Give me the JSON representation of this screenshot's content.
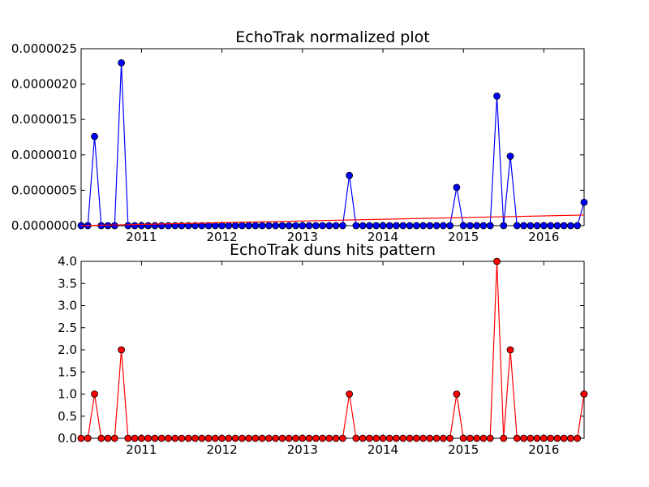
{
  "chart_data": [
    {
      "type": "line",
      "title": "EchoTrak normalized plot",
      "xlabel": "",
      "ylabel": "",
      "xlim": [
        2010.25,
        2016.5
      ],
      "ylim": [
        0,
        2.5e-06
      ],
      "x_ticks": [
        {
          "value": 2011,
          "label": "2011"
        },
        {
          "value": 2012,
          "label": "2012"
        },
        {
          "value": 2013,
          "label": "2013"
        },
        {
          "value": 2014,
          "label": "2014"
        },
        {
          "value": 2015,
          "label": "2015"
        },
        {
          "value": 2016,
          "label": "2016"
        }
      ],
      "y_ticks": [
        {
          "value": 0,
          "label": "0.0000000"
        },
        {
          "value": 5e-07,
          "label": "0.0000005"
        },
        {
          "value": 1e-06,
          "label": "0.0000010"
        },
        {
          "value": 1.5e-06,
          "label": "0.0000015"
        },
        {
          "value": 2e-06,
          "label": "0.0000020"
        },
        {
          "value": 2.5e-06,
          "label": "0.0000025"
        }
      ],
      "x_start": 2010.25,
      "x_step": 0.08333,
      "series": [
        {
          "name": "normalized",
          "color": "#0000ff",
          "marker": "circle",
          "spikes": {
            "2": 1.26e-06,
            "6": 2.3e-06,
            "40": 7.1e-07,
            "56": 5.4e-07,
            "62": 1.83e-06,
            "64": 9.8e-07,
            "75": 3.3e-07
          }
        },
        {
          "name": "trend",
          "color": "#ff0000",
          "marker": "none",
          "line_from": [
            2010.25,
            0.0
          ],
          "line_to": [
            2016.5,
            1.5e-07
          ]
        }
      ]
    },
    {
      "type": "line",
      "title": "EchoTrak duns hits pattern",
      "xlabel": "",
      "ylabel": "",
      "xlim": [
        2010.25,
        2016.5
      ],
      "ylim": [
        0,
        4.0
      ],
      "x_ticks": [
        {
          "value": 2011,
          "label": "2011"
        },
        {
          "value": 2012,
          "label": "2012"
        },
        {
          "value": 2013,
          "label": "2013"
        },
        {
          "value": 2014,
          "label": "2014"
        },
        {
          "value": 2015,
          "label": "2015"
        },
        {
          "value": 2016,
          "label": "2016"
        }
      ],
      "y_ticks": [
        {
          "value": 0,
          "label": "0.0"
        },
        {
          "value": 0.5,
          "label": "0.5"
        },
        {
          "value": 1.0,
          "label": "1.0"
        },
        {
          "value": 1.5,
          "label": "1.5"
        },
        {
          "value": 2.0,
          "label": "2.0"
        },
        {
          "value": 2.5,
          "label": "2.5"
        },
        {
          "value": 3.0,
          "label": "3.0"
        },
        {
          "value": 3.5,
          "label": "3.5"
        },
        {
          "value": 4.0,
          "label": "4.0"
        }
      ],
      "x_start": 2010.25,
      "x_step": 0.08333,
      "series": [
        {
          "name": "hits",
          "color": "#ff0000",
          "marker": "circle",
          "spikes": {
            "2": 1,
            "6": 2,
            "40": 1,
            "56": 1,
            "62": 4,
            "64": 2,
            "75": 1
          }
        }
      ]
    }
  ]
}
